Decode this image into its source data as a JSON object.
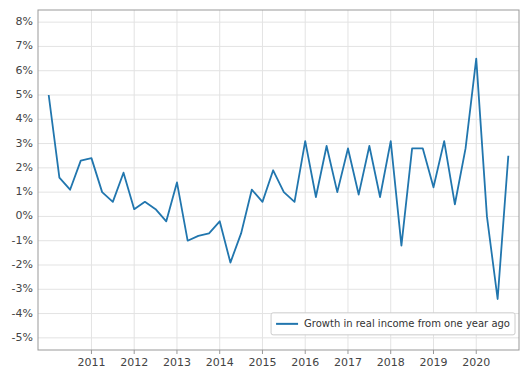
{
  "chart_data": {
    "type": "line",
    "x": [
      2010.0,
      2010.25,
      2010.5,
      2010.75,
      2011.0,
      2011.25,
      2011.5,
      2011.75,
      2012.0,
      2012.25,
      2012.5,
      2012.75,
      2013.0,
      2013.25,
      2013.5,
      2013.75,
      2014.0,
      2014.25,
      2014.5,
      2014.75,
      2015.0,
      2015.25,
      2015.5,
      2015.75,
      2016.0,
      2016.25,
      2016.5,
      2016.75,
      2017.0,
      2017.25,
      2017.5,
      2017.75,
      2018.0,
      2018.25,
      2018.5,
      2018.75,
      2019.0,
      2019.25,
      2019.5,
      2019.75,
      2020.0,
      2020.25,
      2020.5,
      2020.75
    ],
    "series": [
      {
        "name": "Growth in real income from one year ago",
        "color": "#2176ae",
        "values": [
          5.0,
          1.6,
          1.1,
          2.3,
          2.4,
          1.0,
          0.6,
          1.8,
          0.3,
          0.6,
          0.3,
          -0.2,
          1.4,
          -1.0,
          -0.8,
          -0.7,
          -0.2,
          -1.9,
          -0.7,
          1.1,
          0.6,
          1.9,
          1.0,
          0.6,
          3.1,
          0.8,
          2.9,
          1.0,
          2.8,
          0.9,
          2.9,
          0.8,
          3.1,
          -1.2,
          2.8,
          2.8,
          1.2,
          3.1,
          0.5,
          2.8,
          6.5,
          0.0,
          -3.4,
          2.5
        ]
      }
    ],
    "xlim": [
      2009.75,
      2021.0
    ],
    "ylim": [
      -5.5,
      8.5
    ],
    "xticks": [
      2011,
      2012,
      2013,
      2014,
      2015,
      2016,
      2017,
      2018,
      2019,
      2020
    ],
    "yticks": [
      {
        "value": -5,
        "label": "-5%"
      },
      {
        "value": -4,
        "label": "-4%"
      },
      {
        "value": -3,
        "label": "-3%"
      },
      {
        "value": -2,
        "label": "-2%"
      },
      {
        "value": -1,
        "label": "-1%"
      },
      {
        "value": 0,
        "label": "0%"
      },
      {
        "value": 1,
        "label": "1%"
      },
      {
        "value": 2,
        "label": "2%"
      },
      {
        "value": 3,
        "label": "3%"
      },
      {
        "value": 4,
        "label": "4%"
      },
      {
        "value": 5,
        "label": "5%"
      },
      {
        "value": 6,
        "label": "6%"
      },
      {
        "value": 7,
        "label": "7%"
      },
      {
        "value": 8,
        "label": "8%"
      }
    ],
    "grid": true,
    "legend": "lower right"
  }
}
